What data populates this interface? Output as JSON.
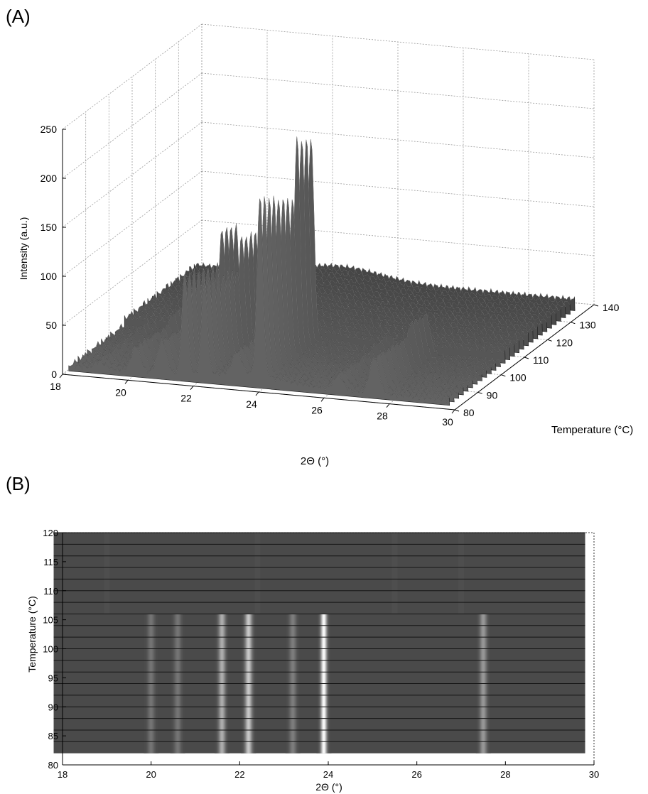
{
  "panel_labels": {
    "a": "(A)",
    "b": "(B)"
  },
  "chart_data": [
    {
      "type": "surface",
      "panel": "(A)",
      "xlabel": "2Θ (°)",
      "ylabel": "Temperature (°C)",
      "zlabel": "Intensity (a.u.)",
      "xlim": [
        18,
        30
      ],
      "ylim": [
        80,
        140
      ],
      "zlim": [
        0,
        250
      ],
      "x_ticks": [
        "18",
        "20",
        "22",
        "24",
        "26",
        "28",
        "30"
      ],
      "y_ticks": [
        "80",
        "90",
        "100",
        "110",
        "120",
        "130",
        "140"
      ],
      "z_ticks": [
        "0",
        "50",
        "100",
        "150",
        "200",
        "250"
      ],
      "grid": true,
      "temperature_range_measured": [
        82,
        136
      ],
      "peaks": [
        {
          "two_theta": 19.0,
          "intensity": 10
        },
        {
          "two_theta": 20.1,
          "intensity": 35
        },
        {
          "two_theta": 20.9,
          "intensity": 45
        },
        {
          "two_theta": 21.6,
          "intensity": 140
        },
        {
          "two_theta": 22.2,
          "intensity": 130
        },
        {
          "two_theta": 23.2,
          "intensity": 30
        },
        {
          "two_theta": 23.9,
          "intensity": 250
        },
        {
          "two_theta": 26.3,
          "intensity": 20
        },
        {
          "two_theta": 27.4,
          "intensity": 50
        }
      ],
      "melt_temperature": 105,
      "background_intensity": 15
    },
    {
      "type": "heatmap",
      "panel": "(B)",
      "xlabel": "2Θ (°)",
      "ylabel": "Temperature (°C)",
      "xlim": [
        18,
        30
      ],
      "ylim": [
        80,
        120
      ],
      "x_ticks": [
        "18",
        "20",
        "22",
        "24",
        "26",
        "28",
        "30"
      ],
      "y_ticks": [
        "80",
        "85",
        "90",
        "95",
        "100",
        "105",
        "110",
        "115",
        "120"
      ],
      "data_range_x": [
        17.8,
        29.8
      ],
      "data_range_y": [
        82,
        120
      ],
      "row_step": 2,
      "bright_bands_two_theta": [
        20.0,
        20.6,
        21.6,
        22.2,
        23.2,
        23.9,
        27.5
      ],
      "bright_bands_max_temperature": 106
    }
  ]
}
